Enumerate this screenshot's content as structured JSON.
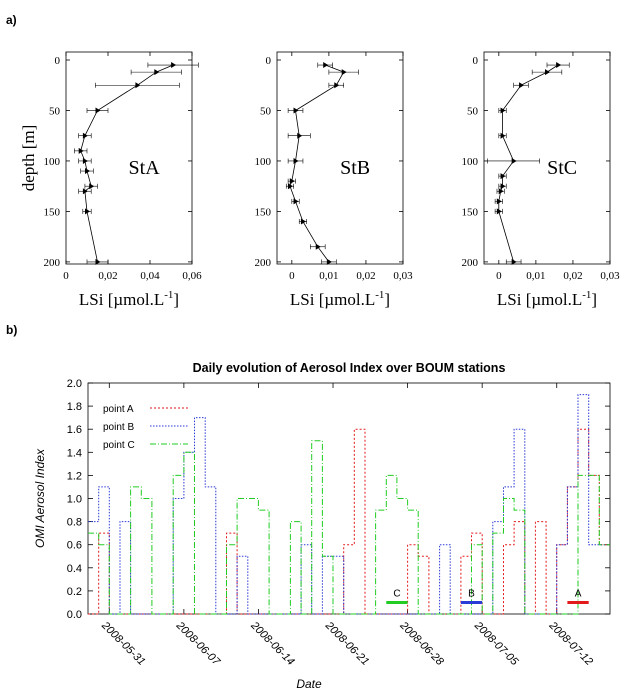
{
  "panel_labels": {
    "a": "a)",
    "b": "b)"
  },
  "chart_data": [
    {
      "type": "scatter",
      "station_label": "StA",
      "xlabel": "LSi [µmol.L",
      "xlabel_sup": "-1",
      "xlabel_tail": "]",
      "ylabel": "depth [m]",
      "xlim": [
        0,
        0.06
      ],
      "ylim": [
        210,
        0
      ],
      "xticks": [
        0,
        0.02,
        0.04,
        0.06
      ],
      "xtick_labels": [
        "0",
        "0,02",
        "0,04",
        "0,06"
      ],
      "yticks": [
        0,
        50,
        100,
        150,
        200
      ],
      "ytick_labels": [
        "0",
        "50",
        "100",
        "150",
        "200"
      ],
      "points": [
        {
          "depth": 5,
          "value": 0.051,
          "err": 0.012
        },
        {
          "depth": 12,
          "value": 0.043,
          "err": 0.012
        },
        {
          "depth": 25,
          "value": 0.034,
          "err": 0.02
        },
        {
          "depth": 50,
          "value": 0.015,
          "err": 0.005
        },
        {
          "depth": 75,
          "value": 0.009,
          "err": 0.003
        },
        {
          "depth": 90,
          "value": 0.007,
          "err": 0.003
        },
        {
          "depth": 100,
          "value": 0.009,
          "err": 0.003
        },
        {
          "depth": 110,
          "value": 0.01,
          "err": 0.003
        },
        {
          "depth": 125,
          "value": 0.012,
          "err": 0.003
        },
        {
          "depth": 130,
          "value": 0.009,
          "err": 0.003
        },
        {
          "depth": 150,
          "value": 0.01,
          "err": 0.002
        },
        {
          "depth": 200,
          "value": 0.015,
          "err": 0.005
        }
      ]
    },
    {
      "type": "scatter",
      "station_label": "StB",
      "xlabel": "LSi [µmol.L",
      "xlabel_sup": "-1",
      "xlabel_tail": "]",
      "ylabel": "",
      "xlim": [
        -0.004,
        0.03
      ],
      "ylim": [
        210,
        0
      ],
      "xticks": [
        0,
        0.01,
        0.02,
        0.03
      ],
      "xtick_labels": [
        "0",
        "0,01",
        "0,02",
        "0,03"
      ],
      "yticks": [
        0,
        50,
        100,
        150,
        200
      ],
      "ytick_labels": [
        "0",
        "50",
        "100",
        "150",
        "200"
      ],
      "points": [
        {
          "depth": 5,
          "value": 0.009,
          "err": 0.002
        },
        {
          "depth": 12,
          "value": 0.014,
          "err": 0.004
        },
        {
          "depth": 25,
          "value": 0.012,
          "err": 0.002
        },
        {
          "depth": 50,
          "value": 0.001,
          "err": 0.002
        },
        {
          "depth": 75,
          "value": 0.002,
          "err": 0.003
        },
        {
          "depth": 100,
          "value": 0.001,
          "err": 0.002
        },
        {
          "depth": 120,
          "value": 0.0,
          "err": 0.001
        },
        {
          "depth": 125,
          "value": -0.0005,
          "err": 0.001
        },
        {
          "depth": 140,
          "value": 0.001,
          "err": 0.001
        },
        {
          "depth": 160,
          "value": 0.003,
          "err": 0.001
        },
        {
          "depth": 185,
          "value": 0.007,
          "err": 0.002
        },
        {
          "depth": 200,
          "value": 0.01,
          "err": 0.002
        }
      ]
    },
    {
      "type": "scatter",
      "station_label": "StC",
      "xlabel": "LSi [µmol.L",
      "xlabel_sup": "-1",
      "xlabel_tail": "]",
      "ylabel": "",
      "xlim": [
        -0.004,
        0.03
      ],
      "ylim": [
        210,
        0
      ],
      "xticks": [
        0,
        0.01,
        0.02,
        0.03
      ],
      "xtick_labels": [
        "0",
        "0,01",
        "0,02",
        "0,03"
      ],
      "yticks": [
        0,
        50,
        100,
        150,
        200
      ],
      "ytick_labels": [
        "0",
        "50",
        "100",
        "150",
        "200"
      ],
      "points": [
        {
          "depth": 5,
          "value": 0.016,
          "err": 0.003
        },
        {
          "depth": 12,
          "value": 0.013,
          "err": 0.004
        },
        {
          "depth": 25,
          "value": 0.006,
          "err": 0.002
        },
        {
          "depth": 50,
          "value": 0.001,
          "err": 0.001
        },
        {
          "depth": 75,
          "value": 0.001,
          "err": 0.001
        },
        {
          "depth": 100,
          "value": 0.004,
          "err": 0.007
        },
        {
          "depth": 115,
          "value": 0.001,
          "err": 0.001
        },
        {
          "depth": 125,
          "value": 0.001,
          "err": 0.001
        },
        {
          "depth": 130,
          "value": 0.0005,
          "err": 0.001
        },
        {
          "depth": 140,
          "value": 0.0,
          "err": 0.001
        },
        {
          "depth": 150,
          "value": 0.0,
          "err": 0.001
        },
        {
          "depth": 200,
          "value": 0.004,
          "err": 0.002
        }
      ]
    },
    {
      "type": "line",
      "step": true,
      "title": "Daily evolution of Aerosol Index over BOUM stations",
      "xlabel": "Date",
      "ylabel": "OMI Aerosol Index",
      "ylim": [
        0,
        2.0
      ],
      "yticks": [
        0,
        0.2,
        0.4,
        0.6,
        0.8,
        1.0,
        1.2,
        1.4,
        1.6,
        1.8,
        2.0
      ],
      "ytick_labels": [
        "0.0",
        "0.2",
        "0.4",
        "0.6",
        "0.8",
        "1.0",
        "1.2",
        "1.4",
        "1.6",
        "1.8",
        "2.0"
      ],
      "xlim": [
        "2008-05-29",
        "2008-07-17"
      ],
      "xticks": [
        "2008-05-31",
        "2008-06-07",
        "2008-06-14",
        "2008-06-21",
        "2008-06-28",
        "2008-07-05",
        "2008-07-12"
      ],
      "legend_position": "top-left",
      "series": [
        {
          "name": "point A",
          "color": "#e31a1c",
          "dash": "2,2",
          "values": [
            [
              "2008-05-29",
              0
            ],
            [
              "2008-05-30",
              0.7
            ],
            [
              "2008-05-31",
              0
            ],
            [
              "2008-06-01",
              0
            ],
            [
              "2008-06-02",
              0
            ],
            [
              "2008-06-03",
              0
            ],
            [
              "2008-06-04",
              0
            ],
            [
              "2008-06-05",
              0
            ],
            [
              "2008-06-06",
              0
            ],
            [
              "2008-06-07",
              0
            ],
            [
              "2008-06-08",
              0
            ],
            [
              "2008-06-09",
              0
            ],
            [
              "2008-06-10",
              0
            ],
            [
              "2008-06-11",
              0.7
            ],
            [
              "2008-06-12",
              0
            ],
            [
              "2008-06-13",
              0
            ],
            [
              "2008-06-14",
              0
            ],
            [
              "2008-06-15",
              0
            ],
            [
              "2008-06-16",
              0
            ],
            [
              "2008-06-17",
              0
            ],
            [
              "2008-06-18",
              0
            ],
            [
              "2008-06-19",
              0
            ],
            [
              "2008-06-20",
              0
            ],
            [
              "2008-06-21",
              0
            ],
            [
              "2008-06-22",
              0.6
            ],
            [
              "2008-06-23",
              1.6
            ],
            [
              "2008-06-24",
              0
            ],
            [
              "2008-06-25",
              0
            ],
            [
              "2008-06-26",
              0
            ],
            [
              "2008-06-27",
              0
            ],
            [
              "2008-06-28",
              0.6
            ],
            [
              "2008-06-29",
              0.5
            ],
            [
              "2008-06-30",
              0
            ],
            [
              "2008-07-01",
              0
            ],
            [
              "2008-07-02",
              0
            ],
            [
              "2008-07-03",
              0.5
            ],
            [
              "2008-07-04",
              0.7
            ],
            [
              "2008-07-05",
              0
            ],
            [
              "2008-07-06",
              0
            ],
            [
              "2008-07-07",
              0.6
            ],
            [
              "2008-07-08",
              0.8
            ],
            [
              "2008-07-09",
              0
            ],
            [
              "2008-07-10",
              0.8
            ],
            [
              "2008-07-11",
              0
            ],
            [
              "2008-07-12",
              0.6
            ],
            [
              "2008-07-13",
              1.1
            ],
            [
              "2008-07-14",
              1.6
            ],
            [
              "2008-07-15",
              1.2
            ],
            [
              "2008-07-16",
              0.6
            ]
          ]
        },
        {
          "name": "point B",
          "color": "#2b3bd6",
          "dash": "1.5,1.5",
          "values": [
            [
              "2008-05-29",
              0.8
            ],
            [
              "2008-05-30",
              1.1
            ],
            [
              "2008-05-31",
              0
            ],
            [
              "2008-06-01",
              0.8
            ],
            [
              "2008-06-02",
              0
            ],
            [
              "2008-06-03",
              0
            ],
            [
              "2008-06-04",
              0
            ],
            [
              "2008-06-05",
              0
            ],
            [
              "2008-06-06",
              1.0
            ],
            [
              "2008-06-07",
              1.4
            ],
            [
              "2008-06-08",
              1.7
            ],
            [
              "2008-06-09",
              1.1
            ],
            [
              "2008-06-10",
              0
            ],
            [
              "2008-06-11",
              0
            ],
            [
              "2008-06-12",
              0.5
            ],
            [
              "2008-06-13",
              0
            ],
            [
              "2008-06-14",
              0
            ],
            [
              "2008-06-15",
              0
            ],
            [
              "2008-06-16",
              0
            ],
            [
              "2008-06-17",
              0
            ],
            [
              "2008-06-18",
              0.6
            ],
            [
              "2008-06-19",
              0
            ],
            [
              "2008-06-20",
              0.5
            ],
            [
              "2008-06-21",
              0.5
            ],
            [
              "2008-06-22",
              0
            ],
            [
              "2008-06-23",
              0
            ],
            [
              "2008-06-24",
              0
            ],
            [
              "2008-06-25",
              0
            ],
            [
              "2008-06-26",
              0
            ],
            [
              "2008-06-27",
              0
            ],
            [
              "2008-06-28",
              0
            ],
            [
              "2008-06-29",
              0
            ],
            [
              "2008-06-30",
              0
            ],
            [
              "2008-07-01",
              0.6
            ],
            [
              "2008-07-02",
              0
            ],
            [
              "2008-07-03",
              0
            ],
            [
              "2008-07-04",
              0
            ],
            [
              "2008-07-05",
              0
            ],
            [
              "2008-07-06",
              0.8
            ],
            [
              "2008-07-07",
              1.1
            ],
            [
              "2008-07-08",
              1.6
            ],
            [
              "2008-07-09",
              0
            ],
            [
              "2008-07-10",
              0
            ],
            [
              "2008-07-11",
              0
            ],
            [
              "2008-07-12",
              0.6
            ],
            [
              "2008-07-13",
              1.1
            ],
            [
              "2008-07-14",
              1.9
            ],
            [
              "2008-07-15",
              0.6
            ],
            [
              "2008-07-16",
              0.6
            ]
          ]
        },
        {
          "name": "point C",
          "color": "#22cc22",
          "dash": "6,2,1,2",
          "values": [
            [
              "2008-05-29",
              0.7
            ],
            [
              "2008-05-30",
              0.6
            ],
            [
              "2008-05-31",
              0
            ],
            [
              "2008-06-01",
              0
            ],
            [
              "2008-06-02",
              1.1
            ],
            [
              "2008-06-03",
              1.0
            ],
            [
              "2008-06-04",
              0
            ],
            [
              "2008-06-05",
              0
            ],
            [
              "2008-06-06",
              1.2
            ],
            [
              "2008-06-07",
              1.4
            ],
            [
              "2008-06-08",
              0
            ],
            [
              "2008-06-09",
              0
            ],
            [
              "2008-06-10",
              0
            ],
            [
              "2008-06-11",
              0.6
            ],
            [
              "2008-06-12",
              1.0
            ],
            [
              "2008-06-13",
              1.0
            ],
            [
              "2008-06-14",
              0.9
            ],
            [
              "2008-06-15",
              0
            ],
            [
              "2008-06-16",
              0
            ],
            [
              "2008-06-17",
              0.8
            ],
            [
              "2008-06-18",
              0
            ],
            [
              "2008-06-19",
              1.5
            ],
            [
              "2008-06-20",
              0.5
            ],
            [
              "2008-06-21",
              0
            ],
            [
              "2008-06-22",
              0
            ],
            [
              "2008-06-23",
              0
            ],
            [
              "2008-06-24",
              0
            ],
            [
              "2008-06-25",
              0.9
            ],
            [
              "2008-06-26",
              1.2
            ],
            [
              "2008-06-27",
              1.0
            ],
            [
              "2008-06-28",
              0.9
            ],
            [
              "2008-06-29",
              0
            ],
            [
              "2008-06-30",
              0
            ],
            [
              "2008-07-01",
              0
            ],
            [
              "2008-07-02",
              0
            ],
            [
              "2008-07-03",
              0
            ],
            [
              "2008-07-04",
              0.6
            ],
            [
              "2008-07-05",
              0
            ],
            [
              "2008-07-06",
              0.7
            ],
            [
              "2008-07-07",
              1.0
            ],
            [
              "2008-07-08",
              0.9
            ],
            [
              "2008-07-09",
              0
            ],
            [
              "2008-07-10",
              0
            ],
            [
              "2008-07-11",
              0
            ],
            [
              "2008-07-12",
              0
            ],
            [
              "2008-07-13",
              0
            ],
            [
              "2008-07-14",
              1.2
            ],
            [
              "2008-07-15",
              1.2
            ],
            [
              "2008-07-16",
              0.6
            ]
          ]
        }
      ],
      "station_markers": [
        {
          "label": "C",
          "start": "2008-06-26",
          "end": "2008-06-28",
          "y": 0.1,
          "color": "#22cc22"
        },
        {
          "label": "B",
          "start": "2008-07-03",
          "end": "2008-07-05",
          "y": 0.1,
          "color": "#2b3bd6"
        },
        {
          "label": "A",
          "start": "2008-07-13",
          "end": "2008-07-15",
          "y": 0.1,
          "color": "#e31a1c"
        }
      ]
    }
  ]
}
